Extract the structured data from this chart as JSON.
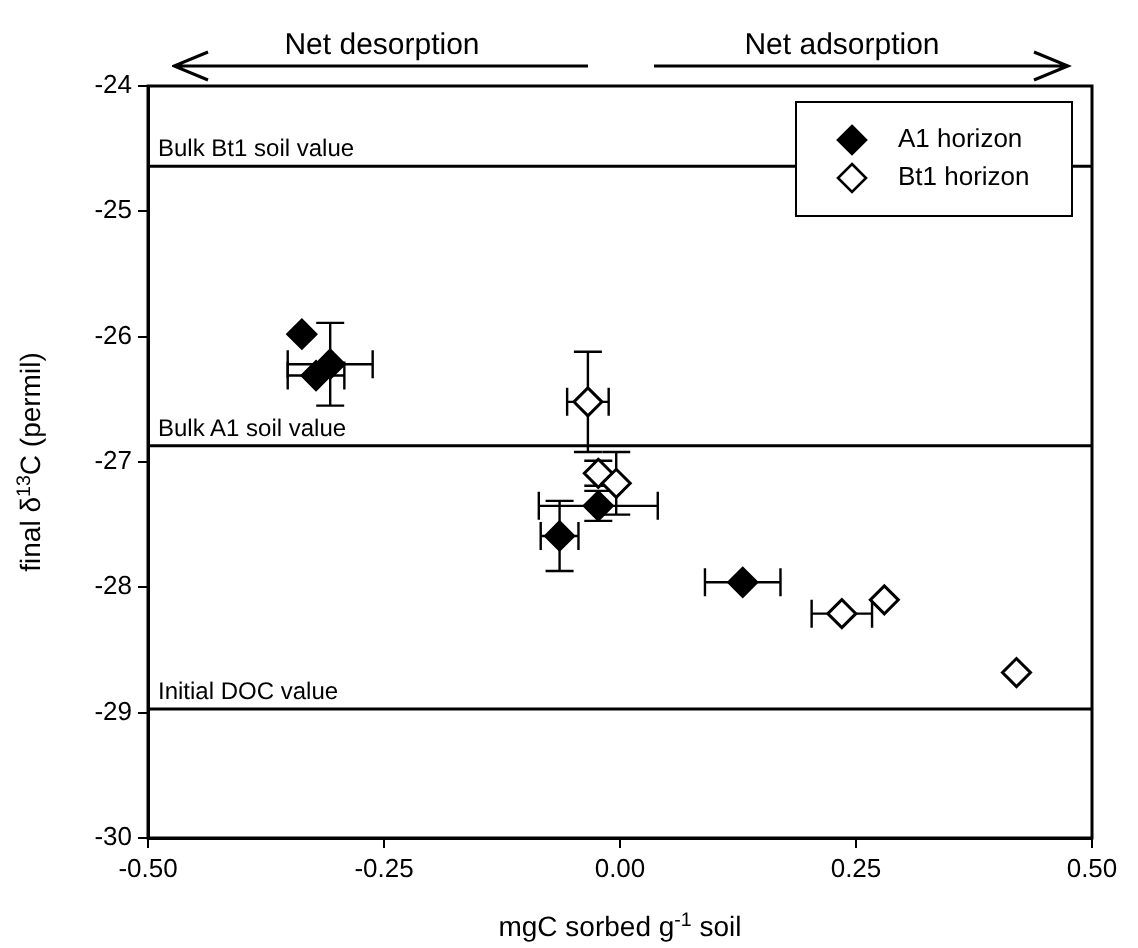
{
  "chart_data": {
    "type": "scatter",
    "xlabel": "mgC sorbed g$^{-1}$ soil",
    "ylabel": "final δ$^{13}$C (permil)",
    "xlim": [
      -0.5,
      0.5
    ],
    "ylim": [
      -30,
      -24
    ],
    "xticks": [
      {
        "value": -0.5,
        "label": "-0.50"
      },
      {
        "value": -0.25,
        "label": "-0.25"
      },
      {
        "value": 0,
        "label": "0.00"
      },
      {
        "value": 0.25,
        "label": "0.25"
      },
      {
        "value": 0.5,
        "label": "0.50"
      }
    ],
    "yticks": [
      -30,
      -29,
      -28,
      -27,
      -26,
      -25,
      -24
    ],
    "grid": false,
    "legend": "top right",
    "marker": "diamond",
    "series": [
      {
        "name": "A1 horizon",
        "color": "#000000",
        "x": [
          -0.337,
          -0.307,
          -0.322,
          -0.023,
          -0.064,
          0.13
        ],
        "values": [
          -25.98,
          -26.22,
          -26.31,
          -27.35,
          -27.59,
          -27.96
        ],
        "errors": [
          null,
          0.33,
          null,
          0.12,
          0.28,
          null
        ],
        "xerrors": [
          null,
          0.045,
          0.03,
          0.063,
          0.02,
          0.04
        ]
      },
      {
        "name": "Bt1 horizon",
        "color": "#ffffff",
        "x": [
          -0.034,
          -0.023,
          -0.004,
          0.235,
          0.28,
          0.42
        ],
        "values": [
          -26.52,
          -27.09,
          -27.17,
          -28.21,
          -28.1,
          -28.68
        ],
        "errors": [
          0.4,
          0.1,
          0.25,
          null,
          null,
          null
        ],
        "xerrors": [
          0.022,
          null,
          null,
          0.032,
          null,
          null
        ]
      }
    ],
    "ref_lines": [
      {
        "axis": "y",
        "value": -24.64,
        "label": "Bulk Bt1 soil value"
      },
      {
        "axis": "y",
        "value": -26.87,
        "label": "Bulk A1 soil value"
      },
      {
        "axis": "y",
        "value": -28.97,
        "label": "Initial DOC value"
      }
    ],
    "annotations": [
      "Net desorption",
      "Net adsorption"
    ]
  }
}
